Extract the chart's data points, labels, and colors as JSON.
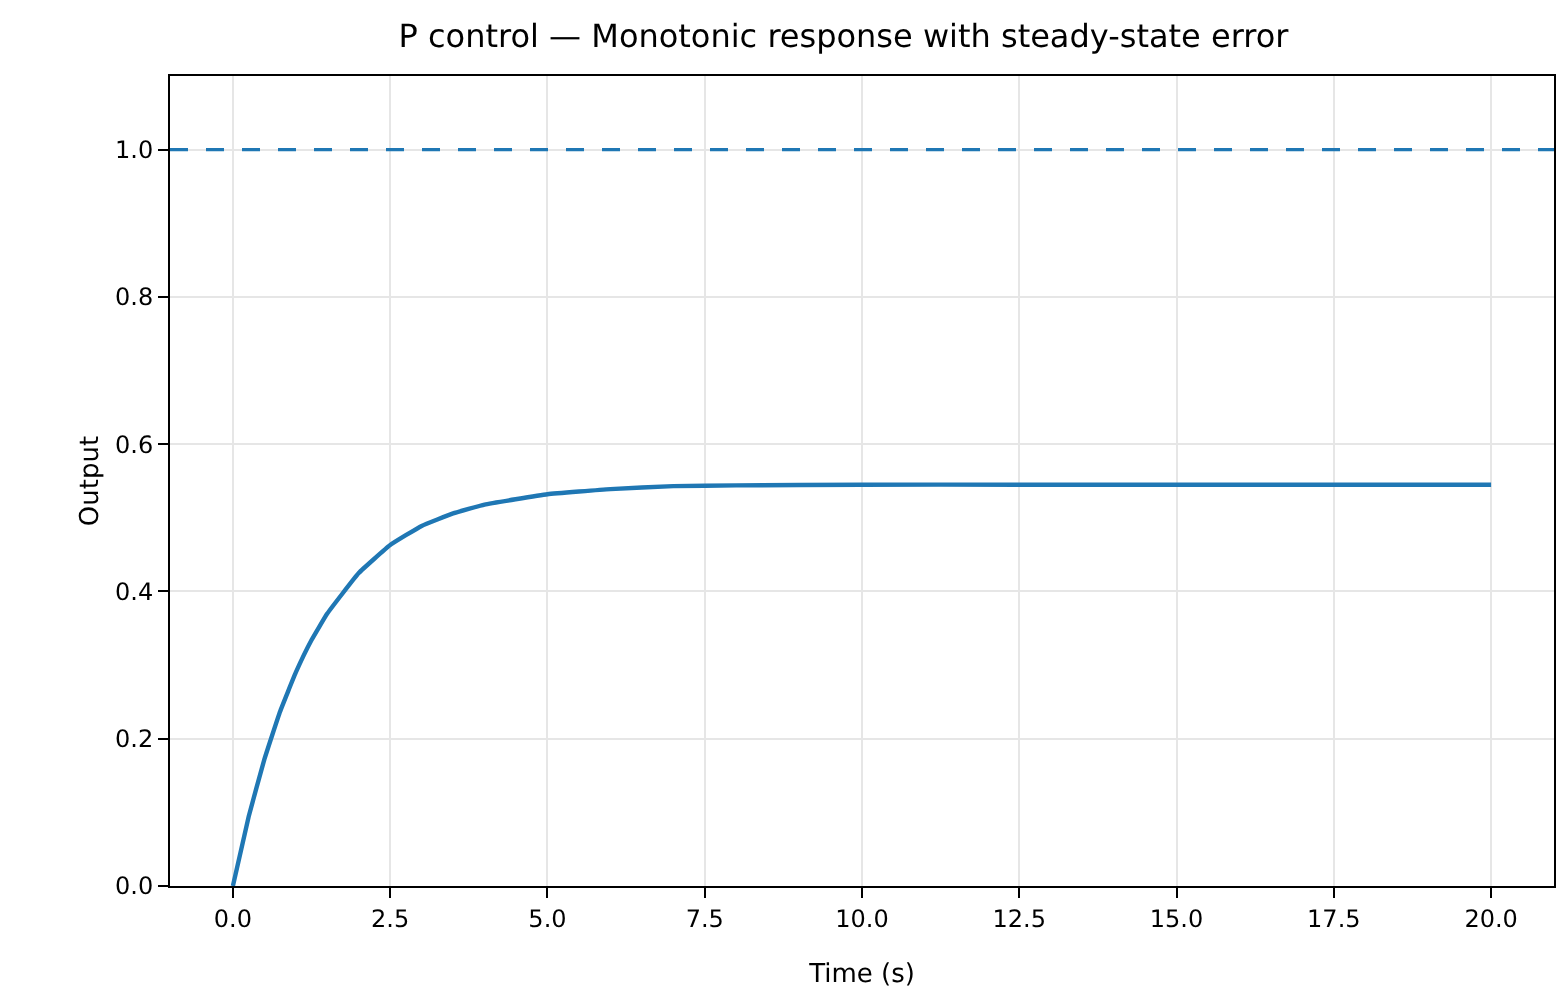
{
  "chart_data": {
    "type": "line",
    "title": "P control — Monotonic response with steady-state error",
    "xlabel": "Time (s)",
    "ylabel": "Output",
    "x": [
      0,
      0.25,
      0.5,
      0.75,
      1,
      1.25,
      1.5,
      2,
      2.5,
      3,
      3.5,
      4,
      5,
      6,
      7,
      8,
      10,
      12.5,
      15,
      17.5,
      20
    ],
    "series": [
      {
        "color": "#1f77b4",
        "values": [
          0,
          0.094,
          0.172,
          0.237,
          0.29,
          0.334,
          0.37,
          0.425,
          0.463,
          0.489,
          0.506,
          0.518,
          0.532,
          0.539,
          0.543,
          0.544,
          0.545,
          0.545,
          0.545,
          0.545,
          0.545
        ]
      }
    ],
    "ref_lines": [
      {
        "axis": "y",
        "value": 1.0,
        "color": "#1f77b4",
        "line_style": "dashed"
      }
    ],
    "xlim": [
      -1,
      21
    ],
    "xticks": [
      {
        "value": 0,
        "label": "0.0"
      },
      {
        "value": 2.5,
        "label": "2.5"
      },
      {
        "value": 5,
        "label": "5.0"
      },
      {
        "value": 7.5,
        "label": "7.5"
      },
      {
        "value": 10,
        "label": "10.0"
      },
      {
        "value": 12.5,
        "label": "12.5"
      },
      {
        "value": 15,
        "label": "15.0"
      },
      {
        "value": 17.5,
        "label": "17.5"
      },
      {
        "value": 20,
        "label": "20.0"
      }
    ],
    "ylim": [
      0,
      1.1
    ],
    "yticks": [
      {
        "value": 0,
        "label": "0.0"
      },
      {
        "value": 0.2,
        "label": "0.2"
      },
      {
        "value": 0.4,
        "label": "0.4"
      },
      {
        "value": 0.6,
        "label": "0.6"
      },
      {
        "value": 0.8,
        "label": "0.8"
      },
      {
        "value": 1,
        "label": "1.0"
      }
    ],
    "grid": true,
    "line_style": "solid",
    "marker": "none"
  }
}
